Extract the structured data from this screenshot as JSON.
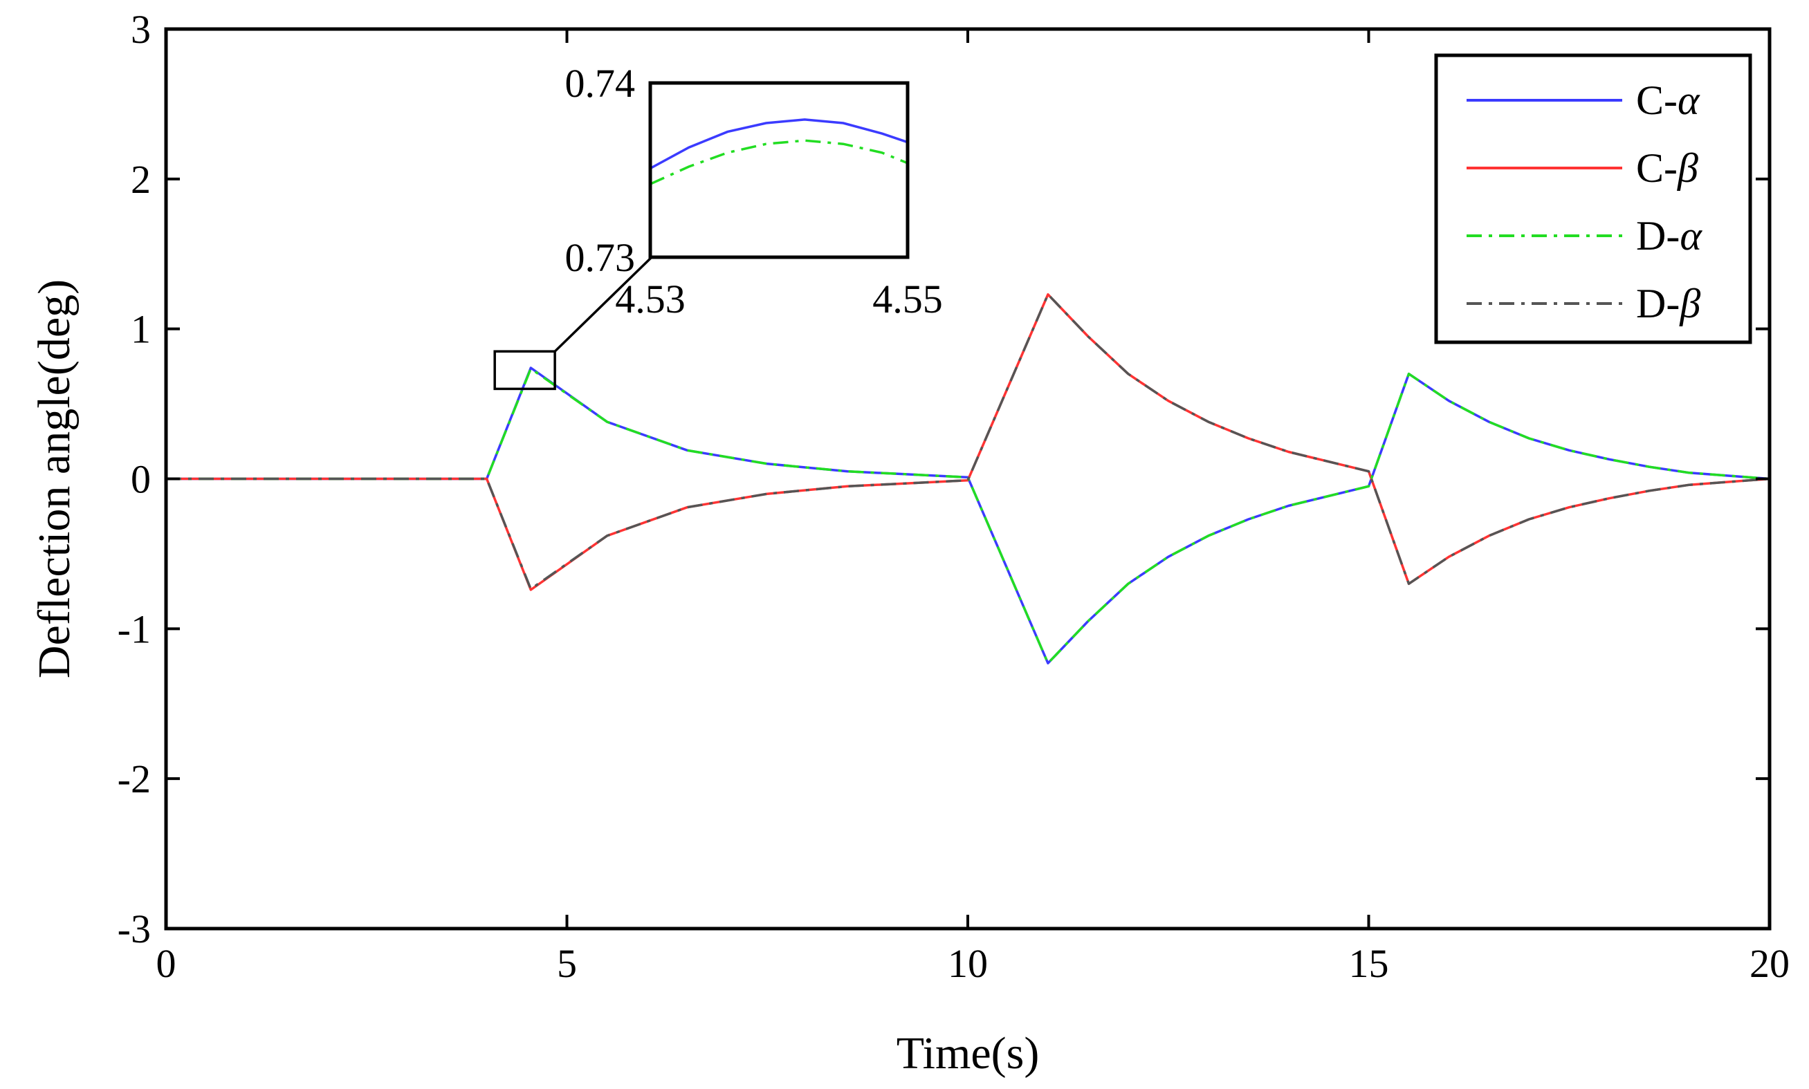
{
  "chart_data": {
    "type": "line",
    "xlabel": "Time(s)",
    "ylabel": "Deflection angle(deg)",
    "xlim": [
      0,
      20
    ],
    "ylim": [
      -3,
      3
    ],
    "xticks": [
      0,
      5,
      10,
      15,
      20
    ],
    "xtick_labels": [
      "0",
      "5",
      "10",
      "15",
      "20"
    ],
    "yticks": [
      -3,
      -2,
      -1,
      0,
      1,
      2,
      3
    ],
    "ytick_labels": [
      "-3",
      "-2",
      "-1",
      "0",
      "1",
      "2",
      "3"
    ],
    "grid": false,
    "legend_position": "top-right",
    "legend": [
      {
        "prefix": "C-",
        "symbol": "α",
        "color": "#3b3bff",
        "style": "solid"
      },
      {
        "prefix": "C-",
        "symbol": "β",
        "color": "#ff3333",
        "style": "solid"
      },
      {
        "prefix": "D-",
        "symbol": "α",
        "color": "#22dd22",
        "style": "dashdot"
      },
      {
        "prefix": "D-",
        "symbol": "β",
        "color": "#555555",
        "style": "dashdot"
      }
    ],
    "series": [
      {
        "name": "C-α",
        "color": "#3b3bff",
        "style": "solid",
        "x": [
          0,
          4.0,
          4.55,
          5.5,
          6.5,
          7.5,
          8.5,
          10.0,
          11.0,
          11.5,
          12,
          12.5,
          13,
          13.5,
          14,
          15.0,
          15.5,
          16,
          16.5,
          17,
          17.5,
          18,
          18.5,
          19,
          20
        ],
        "y": [
          0,
          0,
          0.74,
          0.38,
          0.19,
          0.1,
          0.05,
          0.01,
          -1.23,
          -0.95,
          -0.7,
          -0.52,
          -0.38,
          -0.27,
          -0.18,
          -0.05,
          0.7,
          0.52,
          0.38,
          0.27,
          0.19,
          0.13,
          0.08,
          0.04,
          0.0
        ]
      },
      {
        "name": "C-β",
        "color": "#ff3333",
        "style": "solid",
        "x": [
          0,
          4.0,
          4.55,
          5.5,
          6.5,
          7.5,
          8.5,
          10.0,
          11.0,
          11.5,
          12,
          12.5,
          13,
          13.5,
          14,
          15.0,
          15.5,
          16,
          16.5,
          17,
          17.5,
          18,
          18.5,
          19,
          20
        ],
        "y": [
          0,
          0,
          -0.74,
          -0.38,
          -0.19,
          -0.1,
          -0.05,
          -0.01,
          1.23,
          0.95,
          0.7,
          0.52,
          0.38,
          0.27,
          0.18,
          0.05,
          -0.7,
          -0.52,
          -0.38,
          -0.27,
          -0.19,
          -0.13,
          -0.08,
          -0.04,
          0.0
        ]
      },
      {
        "name": "D-α",
        "color": "#22dd22",
        "style": "dashdot",
        "x": [
          0,
          4.0,
          4.55,
          5.5,
          6.5,
          7.5,
          8.5,
          10.0,
          11.0,
          11.5,
          12,
          12.5,
          13,
          13.5,
          14,
          15.0,
          15.5,
          16,
          16.5,
          17,
          17.5,
          18,
          18.5,
          19,
          20
        ],
        "y": [
          0,
          0,
          0.735,
          0.38,
          0.19,
          0.1,
          0.05,
          0.01,
          -1.23,
          -0.95,
          -0.7,
          -0.52,
          -0.38,
          -0.27,
          -0.18,
          -0.05,
          0.7,
          0.52,
          0.38,
          0.27,
          0.19,
          0.13,
          0.08,
          0.04,
          0.0
        ]
      },
      {
        "name": "D-β",
        "color": "#555555",
        "style": "dashdot",
        "x": [
          0,
          4.0,
          4.55,
          5.5,
          6.5,
          7.5,
          8.5,
          10.0,
          11.0,
          11.5,
          12,
          12.5,
          13,
          13.5,
          14,
          15.0,
          15.5,
          16,
          16.5,
          17,
          17.5,
          18,
          18.5,
          19,
          20
        ],
        "y": [
          0,
          0,
          -0.735,
          -0.38,
          -0.19,
          -0.1,
          -0.05,
          -0.01,
          1.23,
          0.95,
          0.7,
          0.52,
          0.38,
          0.27,
          0.18,
          0.05,
          -0.7,
          -0.52,
          -0.38,
          -0.27,
          -0.19,
          -0.13,
          -0.08,
          -0.04,
          0.0
        ]
      }
    ],
    "inset": {
      "xlim": [
        4.53,
        4.55
      ],
      "ylim": [
        0.73,
        0.74
      ],
      "xticks": [
        4.53,
        4.55
      ],
      "xtick_labels": [
        "4.53",
        "4.55"
      ],
      "yticks": [
        0.73,
        0.74
      ],
      "ytick_labels": [
        "0.73",
        "0.74"
      ],
      "zoom_box": {
        "xmin": 4.1,
        "xmax": 4.85,
        "ymin": 0.6,
        "ymax": 0.85
      },
      "series": [
        {
          "name": "C-α",
          "color": "#3b3bff",
          "style": "solid",
          "x": [
            4.53,
            4.533,
            4.536,
            4.539,
            4.542,
            4.545,
            4.548,
            4.55
          ],
          "y": [
            0.7351,
            0.7363,
            0.7372,
            0.7377,
            0.7379,
            0.7377,
            0.7371,
            0.7366
          ]
        },
        {
          "name": "D-α",
          "color": "#22dd22",
          "style": "dashdot",
          "x": [
            4.53,
            4.533,
            4.536,
            4.539,
            4.542,
            4.545,
            4.548,
            4.55
          ],
          "y": [
            0.7342,
            0.7352,
            0.736,
            0.7365,
            0.7367,
            0.7365,
            0.736,
            0.7354
          ]
        }
      ]
    }
  }
}
